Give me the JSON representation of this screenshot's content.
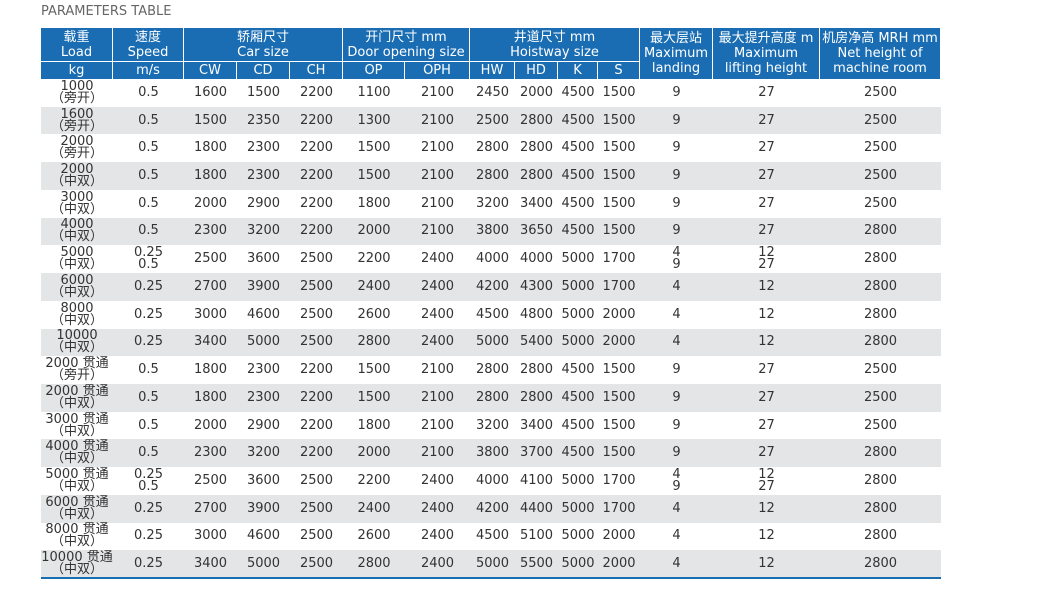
{
  "title": "PARAMETERS TABLE",
  "header": {
    "groups": [
      {
        "label": "载重\nLoad",
        "sub": [
          "kg"
        ]
      },
      {
        "label": "速度\nSpeed",
        "sub": [
          "m/s"
        ]
      },
      {
        "label": "轿厢尺寸\nCar size",
        "sub": [
          "CW",
          "CD",
          "CH"
        ]
      },
      {
        "label": "开门尺寸 mm\nDoor opening size",
        "sub": [
          "OP",
          "OPH"
        ]
      },
      {
        "label": "井道尺寸 mm\nHoistway size",
        "sub": [
          "HW",
          "HD",
          "K",
          "S"
        ]
      },
      {
        "label": "最大层站\nMaximum\nlanding",
        "sub": []
      },
      {
        "label": "最大提升高度 m\nMaximum\nlifting height",
        "sub": []
      },
      {
        "label": "机房净高 MRH mm\nNet height of\nmachine room",
        "sub": []
      }
    ]
  },
  "table": {
    "rows": [
      [
        "1000\n（旁开）",
        "0.5",
        "1600",
        "1500",
        "2200",
        "1100",
        "2100",
        "2450",
        "2000",
        "4500",
        "1500",
        "9",
        "27",
        "2500"
      ],
      [
        "1600\n（旁开）",
        "0.5",
        "1500",
        "2350",
        "2200",
        "1300",
        "2100",
        "2500",
        "2800",
        "4500",
        "1500",
        "9",
        "27",
        "2500"
      ],
      [
        "2000\n（旁开）",
        "0.5",
        "1800",
        "2300",
        "2200",
        "1500",
        "2100",
        "2800",
        "2800",
        "4500",
        "1500",
        "9",
        "27",
        "2500"
      ],
      [
        "2000\n（中双）",
        "0.5",
        "1800",
        "2300",
        "2200",
        "1500",
        "2100",
        "2800",
        "2800",
        "4500",
        "1500",
        "9",
        "27",
        "2500"
      ],
      [
        "3000\n（中双）",
        "0.5",
        "2000",
        "2900",
        "2200",
        "1800",
        "2100",
        "3200",
        "3400",
        "4500",
        "1500",
        "9",
        "27",
        "2500"
      ],
      [
        "4000\n（中双）",
        "0.5",
        "2300",
        "3200",
        "2200",
        "2000",
        "2100",
        "3800",
        "3650",
        "4500",
        "1500",
        "9",
        "27",
        "2800"
      ],
      [
        "5000\n（中双）",
        "0.25\n0.5",
        "2500",
        "3600",
        "2500",
        "2200",
        "2400",
        "4000",
        "4000",
        "5000",
        "1700",
        "4\n9",
        "12\n27",
        "2800"
      ],
      [
        "6000\n（中双）",
        "0.25",
        "2700",
        "3900",
        "2500",
        "2400",
        "2400",
        "4200",
        "4300",
        "5000",
        "1700",
        "4",
        "12",
        "2800"
      ],
      [
        "8000\n（中双）",
        "0.25",
        "3000",
        "4600",
        "2500",
        "2600",
        "2400",
        "4500",
        "4800",
        "5000",
        "2000",
        "4",
        "12",
        "2800"
      ],
      [
        "10000\n（中双）",
        "0.25",
        "3400",
        "5000",
        "2500",
        "2800",
        "2400",
        "5000",
        "5400",
        "5000",
        "2000",
        "4",
        "12",
        "2800"
      ],
      [
        "2000 贯通\n（旁开）",
        "0.5",
        "1800",
        "2300",
        "2200",
        "1500",
        "2100",
        "2800",
        "2800",
        "4500",
        "1500",
        "9",
        "27",
        "2500"
      ],
      [
        "2000 贯通\n（中双）",
        "0.5",
        "1800",
        "2300",
        "2200",
        "1500",
        "2100",
        "2800",
        "2800",
        "4500",
        "1500",
        "9",
        "27",
        "2500"
      ],
      [
        "3000 贯通\n（中双）",
        "0.5",
        "2000",
        "2900",
        "2200",
        "1800",
        "2100",
        "3200",
        "3400",
        "4500",
        "1500",
        "9",
        "27",
        "2500"
      ],
      [
        "4000 贯通\n（中双）",
        "0.5",
        "2300",
        "3200",
        "2200",
        "2000",
        "2100",
        "3800",
        "3700",
        "4500",
        "1500",
        "9",
        "27",
        "2800"
      ],
      [
        "5000 贯通\n（中双）",
        "0.25\n0.5",
        "2500",
        "3600",
        "2500",
        "2200",
        "2400",
        "4000",
        "4100",
        "5000",
        "1700",
        "4\n9",
        "12\n27",
        "2800"
      ],
      [
        "6000 贯通\n（中双）",
        "0.25",
        "2700",
        "3900",
        "2500",
        "2400",
        "2400",
        "4200",
        "4400",
        "5000",
        "1700",
        "4",
        "12",
        "2800"
      ],
      [
        "8000 贯通\n（中双）",
        "0.25",
        "3000",
        "4600",
        "2500",
        "2600",
        "2400",
        "4500",
        "5100",
        "5000",
        "2000",
        "4",
        "12",
        "2800"
      ],
      [
        "10000 贯通\n（中双）",
        "0.25",
        "3400",
        "5000",
        "2500",
        "2800",
        "2400",
        "5000",
        "5500",
        "5000",
        "2000",
        "4",
        "12",
        "2800"
      ]
    ]
  }
}
